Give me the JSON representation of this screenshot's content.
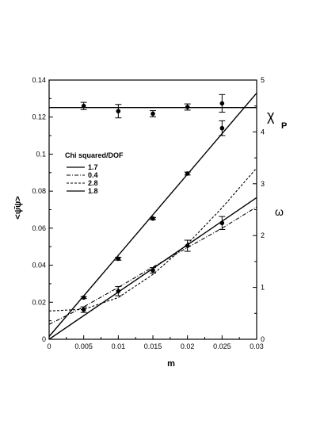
{
  "chart_data": {
    "type": "line",
    "xlabel": "m",
    "ylabel_left": "<ψ̄ψ>",
    "ylabel_right_top": "χ",
    "ylabel_right_top_sub": "P",
    "ylabel_right_mid": "ω",
    "xlim": [
      0,
      0.03
    ],
    "ylim_left": [
      0,
      0.14
    ],
    "ylim_right": [
      0,
      5
    ],
    "x_ticks": [
      "0",
      "0.005",
      "0.01",
      "0.015",
      "0.02",
      "0.025",
      "0.03"
    ],
    "y_left_ticks": [
      "0",
      "0.02",
      "0.04",
      "0.06",
      "0.08",
      "0.1",
      "0.12",
      "0.14"
    ],
    "y_right_ticks": [
      "0",
      "1",
      "2",
      "3",
      "4",
      "5"
    ],
    "legend_title": "Chi squared/DOF",
    "legend": [
      {
        "label": "1.7",
        "dash": "solid"
      },
      {
        "label": "0.4",
        "dash": "dashdot"
      },
      {
        "label": "2.8",
        "dash": "dashed"
      },
      {
        "label": "1.8",
        "dash": "solid"
      }
    ],
    "legend_position": "left-middle",
    "points": [
      {
        "axis": "left",
        "x": [
          0.005,
          0.01,
          0.015,
          0.02,
          0.025
        ],
        "y": [
          0.0225,
          0.0435,
          0.0652,
          0.0895,
          0.114
        ],
        "err": [
          0.0005,
          0.0008,
          0.0006,
          0.0008,
          0.004
        ]
      },
      {
        "axis": "left",
        "x": [
          0.005,
          0.01,
          0.015,
          0.02,
          0.025
        ],
        "y": [
          0.016,
          0.026,
          0.0372,
          0.0505,
          0.0628
        ],
        "err": [
          0.0015,
          0.0025,
          0.0015,
          0.003,
          0.0035
        ]
      },
      {
        "axis": "right",
        "x": [
          0.005,
          0.01,
          0.015,
          0.02,
          0.025
        ],
        "y": [
          4.5,
          4.4,
          4.35,
          4.48,
          4.55
        ],
        "err": [
          0.07,
          0.13,
          0.06,
          0.06,
          0.17
        ]
      }
    ],
    "lines": [
      {
        "axis": "left",
        "dash": "solid",
        "x": [
          0,
          0.03
        ],
        "y": [
          0.0015,
          0.133
        ]
      },
      {
        "axis": "left",
        "dash": "solid",
        "x": [
          0,
          0.03
        ],
        "y": [
          0,
          0.0765
        ]
      },
      {
        "axis": "left",
        "dash": "dashdot",
        "x": [
          0,
          0.005,
          0.01,
          0.015,
          0.02,
          0.025,
          0.03
        ],
        "y": [
          0.008,
          0.0175,
          0.028,
          0.039,
          0.0495,
          0.06,
          0.0715
        ]
      },
      {
        "axis": "left",
        "dash": "dashed",
        "x": [
          0,
          0.005,
          0.01,
          0.015,
          0.02,
          0.025,
          0.03
        ],
        "y": [
          0.0153,
          0.0162,
          0.0225,
          0.035,
          0.0515,
          0.071,
          0.0925
        ]
      },
      {
        "axis": "right",
        "dash": "solid",
        "x": [
          0,
          0.03
        ],
        "y": [
          4.47,
          4.47
        ]
      }
    ]
  }
}
